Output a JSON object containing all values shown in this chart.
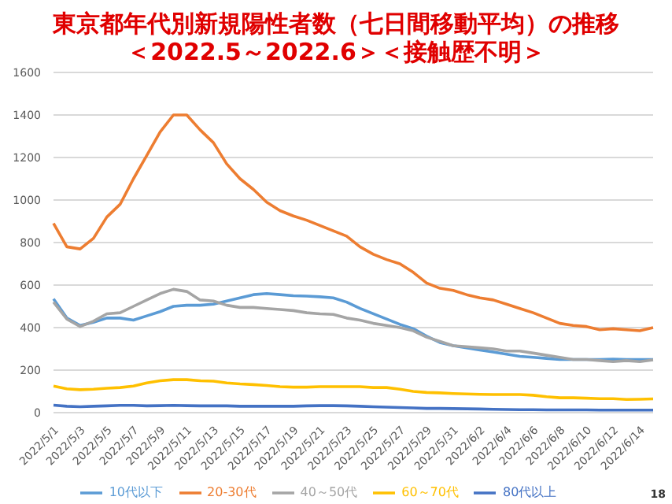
{
  "chart_data": {
    "type": "line",
    "title": "東京都年代別新規陽性者数（七日間移動平均）の推移",
    "subtitle": "＜2022.5～2022.6＞＜接触歴不明＞",
    "categories": [
      "2022/5/1",
      null,
      "2022/5/3",
      null,
      "2022/5/5",
      null,
      "2022/5/7",
      null,
      "2022/5/9",
      null,
      "2022/5/11",
      null,
      "2022/5/13",
      null,
      "2022/5/15",
      null,
      "2022/5/17",
      null,
      "2022/5/19",
      null,
      "2022/5/21",
      null,
      "2022/5/23",
      null,
      "2022/5/25",
      null,
      "2022/5/27",
      null,
      "2022/5/29",
      null,
      "2022/5/31",
      null,
      "2022/6/2",
      null,
      "2022/6/4",
      null,
      "2022/6/6",
      null,
      "2022/6/8",
      null,
      "2022/6/10",
      null,
      "2022/6/12",
      null,
      "2022/6/14",
      null
    ],
    "series": [
      {
        "name": "10代以下",
        "color": "#5b9bd5",
        "values": [
          535,
          445,
          410,
          425,
          445,
          445,
          435,
          455,
          475,
          500,
          505,
          505,
          510,
          525,
          540,
          555,
          560,
          555,
          550,
          548,
          545,
          540,
          520,
          490,
          465,
          440,
          415,
          395,
          360,
          330,
          315,
          305,
          295,
          285,
          275,
          265,
          260,
          255,
          250,
          250,
          250,
          250,
          252,
          250,
          250,
          250
        ]
      },
      {
        "name": "20-30代",
        "color": "#ed7d31",
        "values": [
          890,
          780,
          770,
          820,
          920,
          980,
          1100,
          1210,
          1320,
          1400,
          1400,
          1330,
          1270,
          1170,
          1100,
          1050,
          990,
          950,
          925,
          905,
          880,
          855,
          830,
          780,
          745,
          720,
          700,
          660,
          610,
          585,
          575,
          555,
          540,
          530,
          510,
          490,
          470,
          445,
          420,
          410,
          405,
          390,
          395,
          390,
          385,
          400
        ]
      },
      {
        "name": "40～50代",
        "color": "#a5a5a5",
        "values": [
          520,
          440,
          405,
          430,
          465,
          470,
          500,
          530,
          560,
          580,
          570,
          530,
          525,
          505,
          495,
          495,
          490,
          485,
          480,
          470,
          465,
          462,
          445,
          435,
          420,
          410,
          400,
          385,
          355,
          335,
          315,
          310,
          305,
          300,
          290,
          290,
          280,
          270,
          260,
          250,
          250,
          245,
          240,
          245,
          240,
          248
        ]
      },
      {
        "name": "60～70代",
        "color": "#ffc000",
        "values": [
          125,
          112,
          108,
          110,
          115,
          118,
          125,
          140,
          150,
          155,
          155,
          150,
          148,
          140,
          135,
          132,
          128,
          122,
          120,
          120,
          122,
          122,
          122,
          122,
          118,
          118,
          110,
          100,
          95,
          93,
          90,
          88,
          86,
          85,
          85,
          85,
          82,
          75,
          70,
          70,
          68,
          66,
          66,
          62,
          63,
          65
        ]
      },
      {
        "name": "80代以上",
        "color": "#4472c4",
        "values": [
          35,
          30,
          28,
          30,
          32,
          34,
          34,
          32,
          33,
          34,
          33,
          32,
          32,
          32,
          30,
          30,
          30,
          30,
          30,
          32,
          33,
          33,
          32,
          30,
          28,
          26,
          24,
          22,
          20,
          20,
          19,
          18,
          17,
          16,
          15,
          14,
          14,
          13,
          13,
          13,
          13,
          12,
          12,
          12,
          12,
          12
        ]
      }
    ],
    "ylim": [
      0,
      1600
    ],
    "yticks": [
      0,
      200,
      400,
      600,
      800,
      1000,
      1200,
      1400,
      1600
    ],
    "grid": "y",
    "legend": "bottom",
    "marker": "none",
    "line_style": "solid",
    "annotations": [
      "18"
    ]
  }
}
